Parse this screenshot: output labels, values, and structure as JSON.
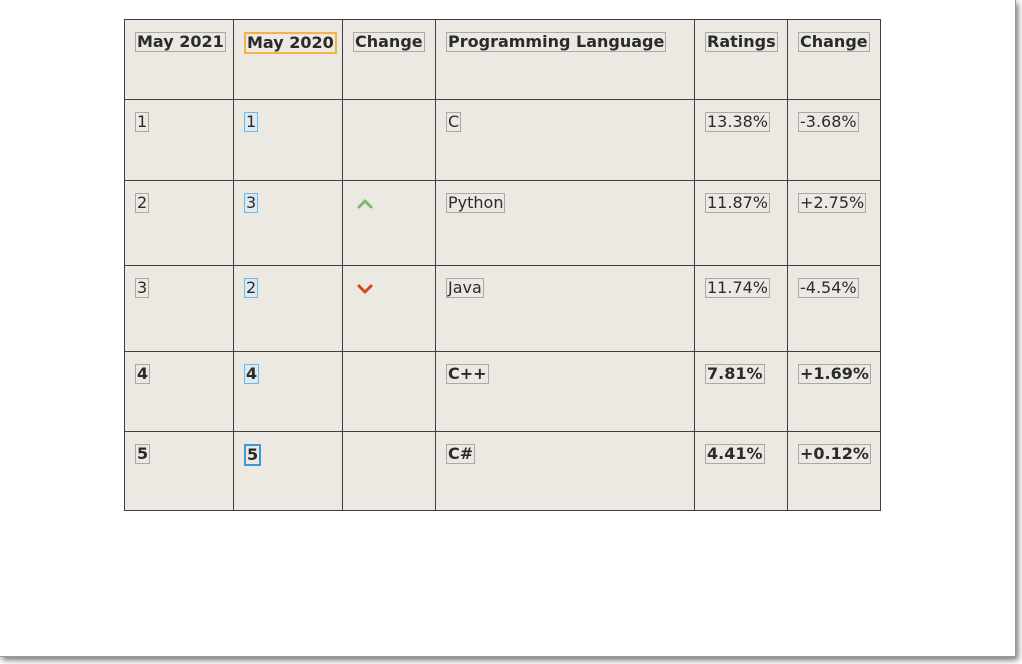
{
  "table": {
    "headers": [
      "May 2021",
      "May 2020",
      "Change",
      "Programming Language",
      "Ratings",
      "Change"
    ],
    "rows": [
      {
        "may2021": "1",
        "may2020": "1",
        "change_icon": "",
        "language": "C",
        "ratings": "13.38%",
        "delta": "-3.68%"
      },
      {
        "may2021": "2",
        "may2020": "3",
        "change_icon": "up-arrow-icon",
        "language": "Python",
        "ratings": "11.87%",
        "delta": "+2.75%"
      },
      {
        "may2021": "3",
        "may2020": "2",
        "change_icon": "down-arrow-icon",
        "language": "Java",
        "ratings": "11.74%",
        "delta": "-4.54%"
      },
      {
        "may2021": "4",
        "may2020": "4",
        "change_icon": "",
        "language": "C++",
        "ratings": "7.81%",
        "delta": "+1.69%"
      },
      {
        "may2021": "5",
        "may2020": "5",
        "change_icon": "",
        "language": "C#",
        "ratings": "4.41%",
        "delta": "+0.12%"
      }
    ]
  },
  "colors": {
    "table_background": "#ece9e3",
    "up_arrow": "#7dbb6a",
    "down_arrow": "#d8461f",
    "highlight_orange": "#f4b24a",
    "highlight_blue": "#3a9ad9"
  }
}
